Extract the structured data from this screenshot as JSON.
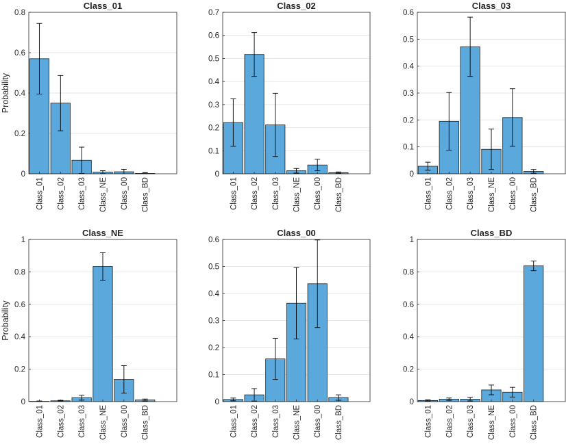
{
  "colors": {
    "bar": "#5ba9dc",
    "grid": "#e6e6e6",
    "axis": "#262626",
    "error": "#000000"
  },
  "chart_data": [
    {
      "type": "bar",
      "title": "Class_01",
      "ylabel": "Probability",
      "categories": [
        "Class_01",
        "Class_02",
        "Class_03",
        "Class_NE",
        "Class_00",
        "Class_BD"
      ],
      "values": [
        0.57,
        0.35,
        0.067,
        0.008,
        0.01,
        0.002
      ],
      "errors": [
        0.175,
        0.137,
        0.065,
        0.007,
        0.012,
        0.003
      ],
      "ylim": [
        0,
        0.8
      ],
      "yticks": [
        "0",
        "0.2",
        "0.4",
        "0.6",
        "0.8"
      ],
      "grid": true
    },
    {
      "type": "bar",
      "title": "Class_02",
      "ylabel": "",
      "categories": [
        "Class_01",
        "Class_02",
        "Class_03",
        "Class_NE",
        "Class_00",
        "Class_BD"
      ],
      "values": [
        0.222,
        0.517,
        0.212,
        0.013,
        0.038,
        0.005
      ],
      "errors": [
        0.103,
        0.095,
        0.137,
        0.01,
        0.025,
        0.003
      ],
      "ylim": [
        0,
        0.7
      ],
      "yticks": [
        "0",
        "0.1",
        "0.2",
        "0.3",
        "0.4",
        "0.5",
        "0.6",
        "0.7"
      ],
      "grid": true
    },
    {
      "type": "bar",
      "title": "Class_03",
      "ylabel": "",
      "categories": [
        "Class_01",
        "Class_02",
        "Class_03",
        "Class_NE",
        "Class_00",
        "Class_BD"
      ],
      "values": [
        0.028,
        0.195,
        0.472,
        0.091,
        0.209,
        0.009
      ],
      "errors": [
        0.015,
        0.107,
        0.11,
        0.075,
        0.107,
        0.007
      ],
      "ylim": [
        0,
        0.6
      ],
      "yticks": [
        "0",
        "0.1",
        "0.2",
        "0.3",
        "0.4",
        "0.5",
        "0.6"
      ],
      "grid": true
    },
    {
      "type": "bar",
      "title": "Class_NE",
      "ylabel": "Probability",
      "categories": [
        "Class_01",
        "Class_02",
        "Class_03",
        "Class_NE",
        "Class_00",
        "Class_BD"
      ],
      "values": [
        0.002,
        0.005,
        0.024,
        0.833,
        0.137,
        0.01
      ],
      "errors": [
        0.002,
        0.003,
        0.015,
        0.085,
        0.085,
        0.006
      ],
      "ylim": [
        0,
        1
      ],
      "yticks": [
        "0",
        "0.2",
        "0.4",
        "0.6",
        "0.8",
        "1"
      ],
      "grid": true
    },
    {
      "type": "bar",
      "title": "Class_00",
      "ylabel": "",
      "categories": [
        "Class_01",
        "Class_02",
        "Class_03",
        "Class_NE",
        "Class_00",
        "Class_BD"
      ],
      "values": [
        0.008,
        0.025,
        0.158,
        0.364,
        0.436,
        0.015
      ],
      "errors": [
        0.005,
        0.023,
        0.076,
        0.132,
        0.162,
        0.01
      ],
      "ylim": [
        0,
        0.6
      ],
      "yticks": [
        "0",
        "0.1",
        "0.2",
        "0.3",
        "0.4",
        "0.5",
        "0.6"
      ],
      "grid": true
    },
    {
      "type": "bar",
      "title": "Class_BD",
      "ylabel": "",
      "categories": [
        "Class_01",
        "Class_02",
        "Class_03",
        "Class_NE",
        "Class_00",
        "Class_BD"
      ],
      "values": [
        0.007,
        0.015,
        0.015,
        0.072,
        0.058,
        0.837
      ],
      "errors": [
        0.004,
        0.007,
        0.011,
        0.03,
        0.03,
        0.03
      ],
      "ylim": [
        0,
        1
      ],
      "yticks": [
        "0",
        "0.2",
        "0.4",
        "0.6",
        "0.8",
        "1"
      ],
      "grid": true
    }
  ]
}
